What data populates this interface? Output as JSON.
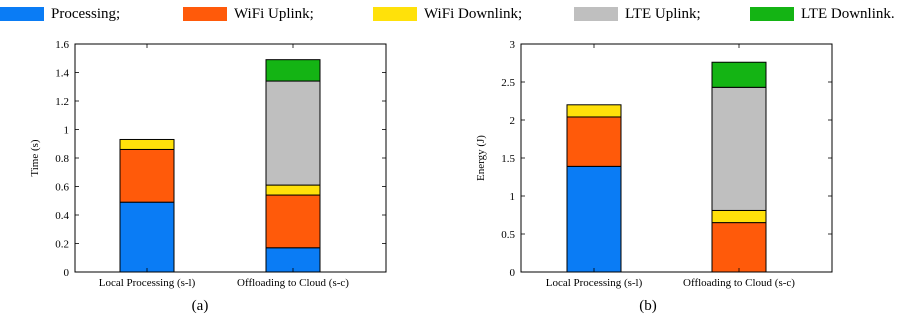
{
  "legend": [
    {
      "label": "Processing;",
      "color": "#0a7cf5"
    },
    {
      "label": "WiFi Uplink;",
      "color": "#ff5a0a"
    },
    {
      "label": "WiFi Downlink;",
      "color": "#ffe10a"
    },
    {
      "label": "LTE Uplink;",
      "color": "#bfbfbf"
    },
    {
      "label": "LTE Downlink.",
      "color": "#14b414"
    }
  ],
  "captions": {
    "a": "(a)",
    "b": "(b)"
  },
  "chart_data": [
    {
      "type": "bar",
      "stacked": true,
      "categories": [
        "Local Processing (s-l)",
        "Offloading to Cloud (s-c)"
      ],
      "ylabel": "Time (s)",
      "ylim": [
        0,
        1.6
      ],
      "yticks": [
        0,
        0.2,
        0.4,
        0.6,
        0.8,
        1,
        1.2,
        1.4,
        1.6
      ],
      "series": [
        {
          "name": "Processing",
          "values": [
            0.49,
            0.17
          ]
        },
        {
          "name": "WiFi Uplink",
          "values": [
            0.37,
            0.37
          ]
        },
        {
          "name": "WiFi Downlink",
          "values": [
            0.07,
            0.07
          ]
        },
        {
          "name": "LTE Uplink",
          "values": [
            0,
            0.73
          ]
        },
        {
          "name": "LTE Downlink",
          "values": [
            0,
            0.15
          ]
        }
      ]
    },
    {
      "type": "bar",
      "stacked": true,
      "categories": [
        "Local Processing (s-l)",
        "Offloading to Cloud (s-c)"
      ],
      "ylabel": "Energy (J)",
      "ylim": [
        0,
        3
      ],
      "yticks": [
        0,
        0.5,
        1,
        1.5,
        2,
        2.5,
        3
      ],
      "series": [
        {
          "name": "Processing",
          "values": [
            1.39,
            0
          ]
        },
        {
          "name": "WiFi Uplink",
          "values": [
            0.65,
            0.65
          ]
        },
        {
          "name": "WiFi Downlink",
          "values": [
            0.16,
            0.16
          ]
        },
        {
          "name": "LTE Uplink",
          "values": [
            0,
            1.62
          ]
        },
        {
          "name": "LTE Downlink",
          "values": [
            0,
            0.33
          ]
        }
      ]
    }
  ]
}
